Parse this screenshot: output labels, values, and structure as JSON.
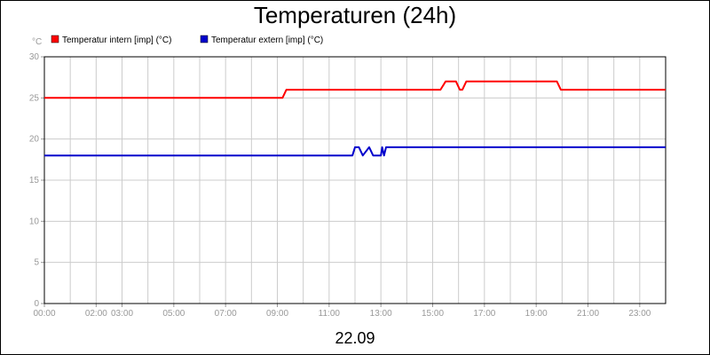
{
  "chart_data": {
    "type": "line",
    "title": "Temperaturen (24h)",
    "ylabel": "°C",
    "xlabel": "22.09",
    "ylim": [
      0,
      30
    ],
    "xlim": [
      0,
      24
    ],
    "yticks": [
      0,
      5,
      10,
      15,
      20,
      25,
      30
    ],
    "xtick_values": [
      0,
      2,
      3,
      5,
      7,
      9,
      11,
      13,
      15,
      17,
      19,
      21,
      23
    ],
    "xtick_labels": [
      "00:00",
      "02:00",
      "03:00",
      "05:00",
      "07:00",
      "09:00",
      "11:00",
      "13:00",
      "15:00",
      "17:00",
      "19:00",
      "21:00",
      "23:00"
    ],
    "grid": true,
    "legend_position": "top-left",
    "series": [
      {
        "name": "Temperatur intern [imp] (°C)",
        "color": "#ff0000",
        "x": [
          0,
          9.2,
          9.35,
          15.3,
          15.5,
          15.9,
          16.05,
          16.15,
          16.3,
          19.8,
          19.95,
          24
        ],
        "y": [
          25,
          25,
          26,
          26,
          27,
          27,
          26,
          26,
          27,
          27,
          26,
          26
        ]
      },
      {
        "name": "Temperatur extern [imp] (°C)",
        "color": "#0000cc",
        "x": [
          0,
          11.9,
          12.0,
          12.15,
          12.3,
          12.55,
          12.7,
          13.0,
          13.05,
          13.12,
          13.2,
          24
        ],
        "y": [
          18,
          18,
          19,
          19,
          18,
          19,
          18,
          18,
          19,
          18,
          19,
          19
        ]
      }
    ]
  }
}
